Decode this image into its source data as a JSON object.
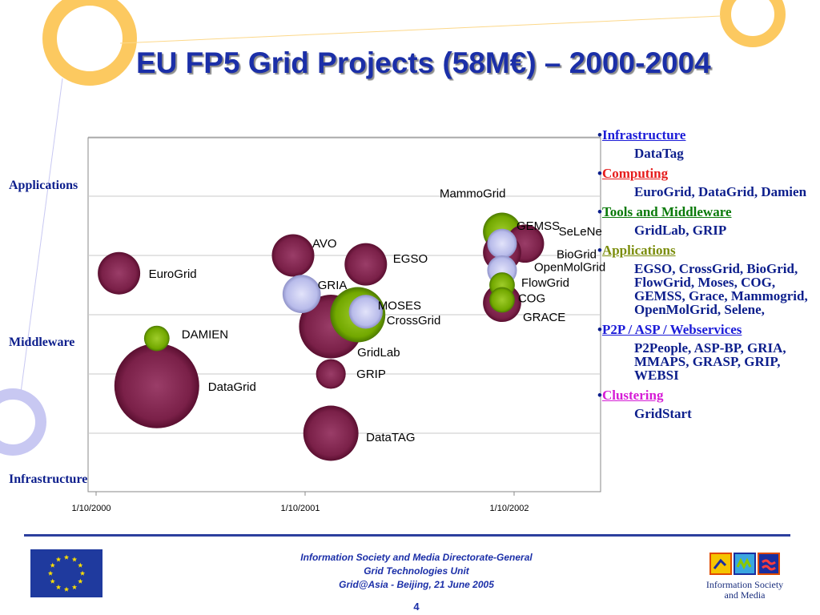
{
  "slide": {
    "title": "EU FP5 Grid Projects (58M€) – 2000-2004",
    "page_number": "4"
  },
  "chart_data": {
    "type": "bubble",
    "y_categories": [
      "Applications",
      "Middleware",
      "Infrastructure"
    ],
    "x_ticks": [
      "1/10/2000",
      "1/10/2001",
      "1/10/2002"
    ],
    "xlim": [
      "2000-10-01",
      "2003-04-01"
    ],
    "ylim": [
      0,
      6
    ],
    "grid": true,
    "series_colors": {
      "maroon": "#8c2a55",
      "green": "#7fb10b",
      "lavender": "#c2c4ec"
    },
    "bubbles": [
      {
        "label": "EuroGrid",
        "x": "2000-11-10",
        "y": 2.7,
        "size": 5,
        "color": "maroon"
      },
      {
        "label": "DAMIEN",
        "x": "2001-01-15",
        "y": 1.6,
        "size": 3,
        "color": "green"
      },
      {
        "label": "DataGrid",
        "x": "2001-01-15",
        "y": 0.8,
        "size": 10,
        "color": "maroon"
      },
      {
        "label": "AVO",
        "x": "2001-09-10",
        "y": 3.0,
        "size": 5,
        "color": "maroon"
      },
      {
        "label": "GRIA",
        "x": "2001-09-25",
        "y": 2.35,
        "size": 4.5,
        "color": "lavender"
      },
      {
        "label": "EGSO",
        "x": "2002-01-15",
        "y": 2.85,
        "size": 5,
        "color": "maroon"
      },
      {
        "label": "MOSES",
        "x": "2002-01-15",
        "y": 2.05,
        "size": 4,
        "color": "lavender"
      },
      {
        "label": "CrossGrid",
        "x": "2002-01-01",
        "y": 2.0,
        "size": 6.5,
        "color": "green"
      },
      {
        "label": "GridLab",
        "x": "2001-11-15",
        "y": 1.8,
        "size": 7.5,
        "color": "maroon"
      },
      {
        "label": "GRIP",
        "x": "2001-11-15",
        "y": 1.0,
        "size": 3.5,
        "color": "maroon"
      },
      {
        "label": "DataTAG",
        "x": "2001-11-15",
        "y": 0.0,
        "size": 6.5,
        "color": "maroon"
      },
      {
        "label": "MammoGrid",
        "x": "2002-09-10",
        "y": 3.4,
        "size": 4.5,
        "color": "green"
      },
      {
        "label": "GEMSS",
        "x": "2002-09-10",
        "y": 3.2,
        "size": 3.5,
        "color": "lavender"
      },
      {
        "label": "SeLeNe",
        "x": "2002-10-20",
        "y": 3.2,
        "size": 4.5,
        "color": "maroon"
      },
      {
        "label": "BioGrid",
        "x": "2002-09-10",
        "y": 3.05,
        "size": 4.5,
        "color": "maroon"
      },
      {
        "label": "OpenMolGrid",
        "x": "2002-09-10",
        "y": 2.75,
        "size": 3.5,
        "color": "lavender"
      },
      {
        "label": "FlowGrid",
        "x": "2002-09-10",
        "y": 2.5,
        "size": 3,
        "color": "green"
      },
      {
        "label": "COG",
        "x": "2002-09-10",
        "y": 2.25,
        "size": 3,
        "color": "green"
      },
      {
        "label": "GRACE",
        "x": "2002-09-10",
        "y": 2.2,
        "size": 4.5,
        "color": "maroon"
      }
    ]
  },
  "legend": [
    {
      "name": "Infrastructure",
      "color": "#1b1bd8",
      "projects": "DataTag"
    },
    {
      "name": "Computing",
      "color": "#e61c1c",
      "projects": "EuroGrid, DataGrid, Damien"
    },
    {
      "name": "Tools and Middleware",
      "color": "#0a7a0a",
      "projects": "GridLab, GRIP"
    },
    {
      "name": "Applications",
      "color": "#7a8c0a",
      "projects": "EGSO, CrossGrid, BioGrid, FlowGrid, Moses, COG, GEMSS, Grace, Mammogrid, OpenMolGrid, Selene,"
    },
    {
      "name": "P2P / ASP / Webservices",
      "color": "#1b1bd8",
      "projects": "P2People, ASP-BP, GRIA, MMAPS, GRASP, GRIP, WEBSI"
    },
    {
      "name": "Clustering",
      "color": "#d61cd6",
      "projects": "GridStart"
    }
  ],
  "footer": {
    "line1": "Information Society and Media Directorate-General",
    "line2": "Grid Technologies Unit",
    "line3": "Grid@Asia - Beijing, 21 June 2005",
    "logo_text_1": "Information Society",
    "logo_text_2": "and Media"
  }
}
